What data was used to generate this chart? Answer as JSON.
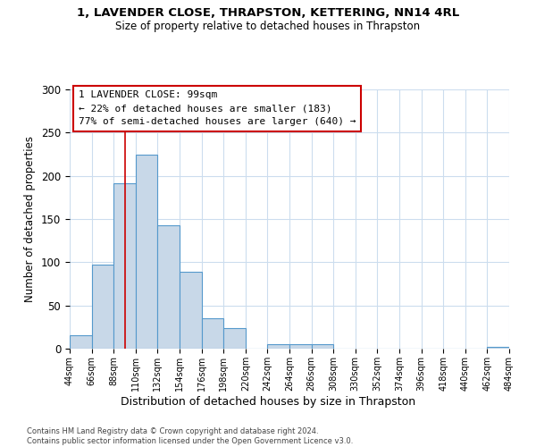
{
  "title": "1, LAVENDER CLOSE, THRAPSTON, KETTERING, NN14 4RL",
  "subtitle": "Size of property relative to detached houses in Thrapston",
  "xlabel": "Distribution of detached houses by size in Thrapston",
  "ylabel": "Number of detached properties",
  "bin_edges": [
    44,
    66,
    88,
    110,
    132,
    154,
    176,
    198,
    220,
    242,
    264,
    286,
    308,
    330,
    352,
    374,
    396,
    418,
    440,
    462,
    484
  ],
  "bar_heights": [
    16,
    97,
    191,
    224,
    143,
    89,
    35,
    24,
    0,
    5,
    5,
    5,
    0,
    0,
    0,
    0,
    0,
    0,
    0,
    2
  ],
  "bar_color": "#c8d8e8",
  "bar_edge_color": "#5599cc",
  "vline_x": 99,
  "vline_color": "#cc0000",
  "ylim": [
    0,
    300
  ],
  "yticks": [
    0,
    50,
    100,
    150,
    200,
    250,
    300
  ],
  "xtick_labels": [
    "44sqm",
    "66sqm",
    "88sqm",
    "110sqm",
    "132sqm",
    "154sqm",
    "176sqm",
    "198sqm",
    "220sqm",
    "242sqm",
    "264sqm",
    "286sqm",
    "308sqm",
    "330sqm",
    "352sqm",
    "374sqm",
    "396sqm",
    "418sqm",
    "440sqm",
    "462sqm",
    "484sqm"
  ],
  "annotation_title": "1 LAVENDER CLOSE: 99sqm",
  "annotation_line1": "← 22% of detached houses are smaller (183)",
  "annotation_line2": "77% of semi-detached houses are larger (640) →",
  "annotation_box_color": "#ffffff",
  "annotation_box_edge_color": "#cc0000",
  "footer_line1": "Contains HM Land Registry data © Crown copyright and database right 2024.",
  "footer_line2": "Contains public sector information licensed under the Open Government Licence v3.0.",
  "bg_color": "#ffffff",
  "grid_color": "#ccddee"
}
